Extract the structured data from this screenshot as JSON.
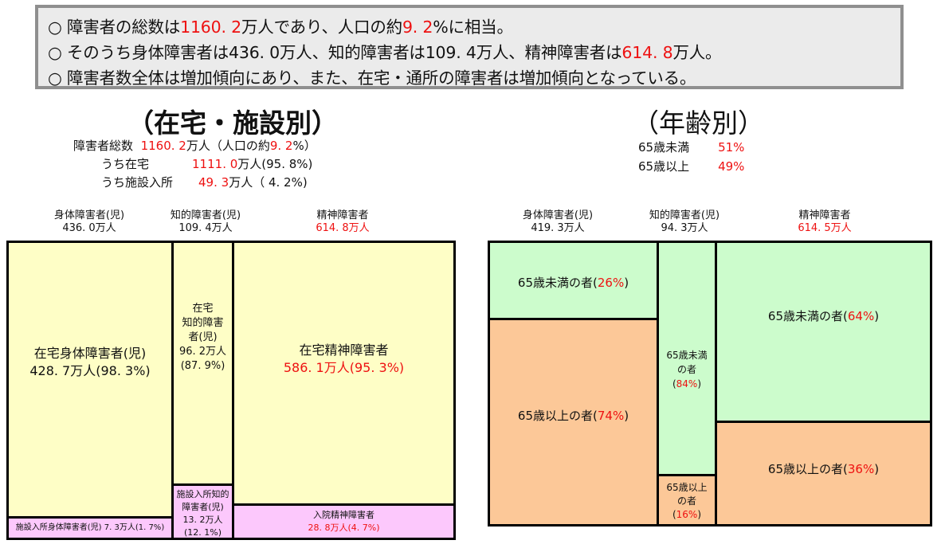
{
  "summary": {
    "line1": {
      "a": "○ 障害者の総数は",
      "b": "1160. 2",
      "c": "万人であり、人口の約",
      "d": "9. 2",
      "e": "%に相当。"
    },
    "line2": {
      "a": "○ そのうち身体障害者は436. 0万人、知的障害者は109. 4万人、精神障害者は",
      "b": "614. 8",
      "c": "万人。"
    },
    "line3": "○ 障害者数全体は増加傾向にあり、また、在宅・通所の障害者は増加傾向となっている。"
  },
  "left_section": {
    "title": "（在宅・施設別）",
    "total": {
      "label": "障害者総数",
      "value": "1160. 2",
      "unit": "万人（人口の約",
      "pct": "9. 2",
      "end": "%）"
    },
    "home": {
      "label": "うち在宅",
      "value": "1111. 0",
      "rest": "万人(95. 8%)"
    },
    "facility": {
      "label": "うち施設入所",
      "value": "49. 3",
      "rest": "万人（ 4. 2%)"
    },
    "columns": [
      {
        "name": "身体障害者(児)",
        "value": "436. 0万人"
      },
      {
        "name": "知的障害者(児)",
        "value": "109. 4万人"
      },
      {
        "name": "精神障害者",
        "value": "614. 8万人"
      }
    ],
    "cells": {
      "physical_home": {
        "label": "在宅身体障害者(児)",
        "value": "428. 7万人(98. 3%)"
      },
      "physical_facility": {
        "label": "施設入所身体障害者(児)  7. 3万人(1. 7%)"
      },
      "intellectual_home": {
        "l1": "在宅",
        "l2": "知的障害",
        "l3": "者(児)",
        "l4": "96. 2万人",
        "l5": "(87. 9%)"
      },
      "intellectual_facility": {
        "l1": "施設入所知的",
        "l2": "障害者(児)",
        "l3": "13. 2万人",
        "l4": "(12. 1%)"
      },
      "mental_home": {
        "label": "在宅精神障害者",
        "value": "586. 1万人(95. 3%)"
      },
      "mental_hospital": {
        "label": "入院精神障害者",
        "value": "28. 8万人(4. 7%)"
      }
    }
  },
  "right_section": {
    "title": "（年齢別）",
    "under65": {
      "label": "65歳未満",
      "value": "51%"
    },
    "over65": {
      "label": "65歳以上",
      "value": "49%"
    },
    "columns": [
      {
        "name": "身体障害者(児)",
        "value": "419. 3万人"
      },
      {
        "name": "知的障害者(児)",
        "value": "94. 3万人"
      },
      {
        "name": "精神障害者",
        "value": "614. 5万人"
      }
    ],
    "cells": {
      "physical_under": {
        "label": "65歳未満の者(",
        "pct": "26%",
        "end": ")"
      },
      "physical_over": {
        "label": "65歳以上の者(",
        "pct": "74%",
        "end": ")"
      },
      "intellectual_under": {
        "l1": "65歳未満",
        "l2": "の者",
        "l3": "(",
        "pct": "84%",
        "end": ")"
      },
      "intellectual_over": {
        "l1": "65歳以上",
        "l2": "の者",
        "l3": "(",
        "pct": "16%",
        "end": ")"
      },
      "mental_under": {
        "label": "65歳未満の者(",
        "pct": "64%",
        "end": ")"
      },
      "mental_over": {
        "label": "65歳以上の者(",
        "pct": "36%",
        "end": ")"
      }
    }
  },
  "chart_data": [
    {
      "type": "table",
      "title": "（在宅・施設別）",
      "categories": [
        "身体障害者(児)",
        "知的障害者(児)",
        "精神障害者"
      ],
      "totals": [
        436.0,
        109.4,
        614.8
      ],
      "series": [
        {
          "name": "在宅",
          "values": [
            428.7,
            96.2,
            586.1
          ],
          "percent": [
            98.3,
            87.9,
            95.3
          ]
        },
        {
          "name": "施設入所／入院",
          "values": [
            7.3,
            13.2,
            28.8
          ],
          "percent": [
            1.7,
            12.1,
            4.7
          ]
        }
      ]
    },
    {
      "type": "table",
      "title": "（年齢別）",
      "categories": [
        "身体障害者(児)",
        "知的障害者(児)",
        "精神障害者"
      ],
      "totals": [
        419.3,
        94.3,
        614.5
      ],
      "series": [
        {
          "name": "65歳未満",
          "percent": [
            26,
            84,
            64
          ]
        },
        {
          "name": "65歳以上",
          "percent": [
            74,
            16,
            36
          ]
        }
      ]
    }
  ]
}
